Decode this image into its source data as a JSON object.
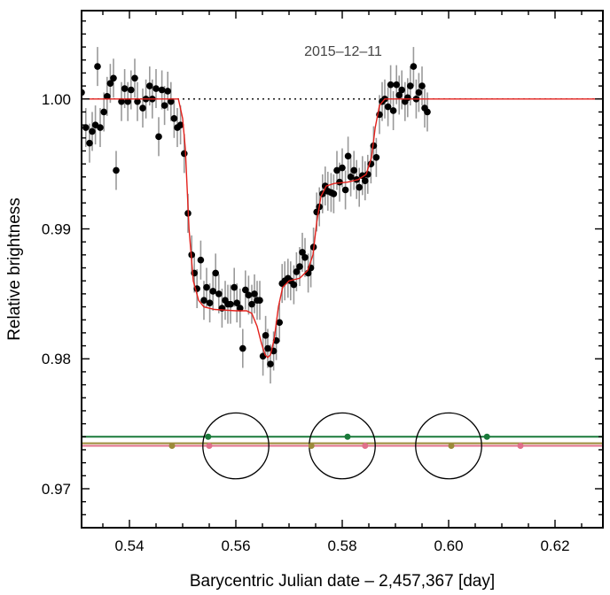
{
  "chart_data": {
    "type": "scatter",
    "date_label": "2015–12–11",
    "xlabel": "Barycentric Julian date – 2,457,367 [day]",
    "ylabel": "Relative brightness",
    "xlim": [
      0.531,
      0.629
    ],
    "ylim": [
      0.967,
      1.0068
    ],
    "x_ticks": [
      0.54,
      0.56,
      0.58,
      0.6,
      0.62
    ],
    "x_tick_labels": [
      "0.54",
      "0.56",
      "0.58",
      "0.60",
      "0.62"
    ],
    "y_ticks": [
      0.97,
      0.98,
      0.99,
      1.0
    ],
    "y_tick_labels": [
      "0.97",
      "0.98",
      "0.99",
      "1.00"
    ],
    "baseline": 1.0,
    "colors": {
      "data": "#000000",
      "errorbar": "#9a9a9a",
      "model": "#e4211c",
      "green_line": "#1a7a3a",
      "olive_line": "#9c8a3a",
      "pink_line": "#e0708a",
      "circle": "#000000"
    },
    "data_points": [
      [
        0.531,
        1.0005,
        0.0015
      ],
      [
        0.5318,
        0.9978,
        0.0015
      ],
      [
        0.5325,
        0.9966,
        0.0015
      ],
      [
        0.533,
        0.9975,
        0.0015
      ],
      [
        0.5336,
        0.998,
        0.0015
      ],
      [
        0.534,
        1.0025,
        0.0015
      ],
      [
        0.5345,
        0.9978,
        0.0015
      ],
      [
        0.5352,
        0.999,
        0.0015
      ],
      [
        0.5358,
        1.0002,
        0.0015
      ],
      [
        0.5364,
        1.0012,
        0.0015
      ],
      [
        0.537,
        1.0016,
        0.0015
      ],
      [
        0.5375,
        0.9945,
        0.0015
      ],
      [
        0.5385,
        0.9998,
        0.0015
      ],
      [
        0.5391,
        1.0008,
        0.0015
      ],
      [
        0.5397,
        0.9998,
        0.0015
      ],
      [
        0.5403,
        1.0007,
        0.0015
      ],
      [
        0.541,
        1.0016,
        0.0015
      ],
      [
        0.5415,
        0.9998,
        0.0015
      ],
      [
        0.5425,
        0.9993,
        0.0015
      ],
      [
        0.5431,
        1.0,
        0.0015
      ],
      [
        0.5438,
        1.001,
        0.0015
      ],
      [
        0.5443,
        1.0,
        0.0015
      ],
      [
        0.545,
        1.0008,
        0.0015
      ],
      [
        0.5455,
        0.9971,
        0.0015
      ],
      [
        0.5461,
        1.0007,
        0.0015
      ],
      [
        0.5466,
        0.9995,
        0.0015
      ],
      [
        0.5472,
        1.0006,
        0.0015
      ],
      [
        0.5478,
        0.9998,
        0.0015
      ],
      [
        0.5484,
        0.9985,
        0.0015
      ],
      [
        0.549,
        0.9978,
        0.0015
      ],
      [
        0.5496,
        0.998,
        0.0015
      ],
      [
        0.5503,
        0.9958,
        0.0015
      ],
      [
        0.551,
        0.9912,
        0.0015
      ],
      [
        0.5517,
        0.988,
        0.0015
      ],
      [
        0.5522,
        0.9866,
        0.0015
      ],
      [
        0.5527,
        0.9854,
        0.0015
      ],
      [
        0.5534,
        0.9876,
        0.0015
      ],
      [
        0.554,
        0.9845,
        0.0015
      ],
      [
        0.5545,
        0.9855,
        0.0015
      ],
      [
        0.5551,
        0.9843,
        0.0015
      ],
      [
        0.5557,
        0.9852,
        0.0015
      ],
      [
        0.5562,
        0.9866,
        0.0015
      ],
      [
        0.5568,
        0.985,
        0.0015
      ],
      [
        0.5574,
        0.9839,
        0.0015
      ],
      [
        0.558,
        0.9845,
        0.0015
      ],
      [
        0.5585,
        0.9842,
        0.0015
      ],
      [
        0.559,
        0.9842,
        0.0015
      ],
      [
        0.5597,
        0.9855,
        0.0015
      ],
      [
        0.5602,
        0.9843,
        0.0015
      ],
      [
        0.5608,
        0.9839,
        0.0015
      ],
      [
        0.5613,
        0.9808,
        0.0015
      ],
      [
        0.5618,
        0.9853,
        0.0015
      ],
      [
        0.5624,
        0.9849,
        0.0015
      ],
      [
        0.563,
        0.9842,
        0.0015
      ],
      [
        0.5635,
        0.985,
        0.0015
      ],
      [
        0.564,
        0.9845,
        0.0015
      ],
      [
        0.5645,
        0.9845,
        0.0015
      ],
      [
        0.5651,
        0.9802,
        0.0015
      ],
      [
        0.5656,
        0.9818,
        0.0015
      ],
      [
        0.566,
        0.9808,
        0.0015
      ],
      [
        0.5665,
        0.9796,
        0.0015
      ],
      [
        0.5671,
        0.9806,
        0.0015
      ],
      [
        0.5676,
        0.9814,
        0.0015
      ],
      [
        0.5682,
        0.9828,
        0.0015
      ],
      [
        0.5687,
        0.9858,
        0.0015
      ],
      [
        0.5692,
        0.986,
        0.0015
      ],
      [
        0.5698,
        0.9862,
        0.0015
      ],
      [
        0.5703,
        0.986,
        0.0015
      ],
      [
        0.5709,
        0.9857,
        0.0015
      ],
      [
        0.5714,
        0.9867,
        0.0015
      ],
      [
        0.572,
        0.9871,
        0.0015
      ],
      [
        0.5725,
        0.9882,
        0.0015
      ],
      [
        0.573,
        0.9878,
        0.0015
      ],
      [
        0.5736,
        0.9866,
        0.0015
      ],
      [
        0.5741,
        0.987,
        0.0015
      ],
      [
        0.5746,
        0.9886,
        0.0015
      ],
      [
        0.5752,
        0.9913,
        0.0015
      ],
      [
        0.5757,
        0.9917,
        0.0015
      ],
      [
        0.5763,
        0.9927,
        0.0015
      ],
      [
        0.5768,
        0.9933,
        0.0015
      ],
      [
        0.5773,
        0.9929,
        0.0015
      ],
      [
        0.5779,
        0.9928,
        0.0015
      ],
      [
        0.5784,
        0.9927,
        0.0015
      ],
      [
        0.579,
        0.9945,
        0.0015
      ],
      [
        0.5795,
        0.9936,
        0.0015
      ],
      [
        0.58,
        0.9947,
        0.0015
      ],
      [
        0.5806,
        0.993,
        0.0015
      ],
      [
        0.5811,
        0.9956,
        0.0015
      ],
      [
        0.5816,
        0.994,
        0.0015
      ],
      [
        0.5822,
        0.9945,
        0.0015
      ],
      [
        0.5827,
        0.9938,
        0.0015
      ],
      [
        0.5832,
        0.9932,
        0.0015
      ],
      [
        0.5838,
        0.9941,
        0.0015
      ],
      [
        0.5843,
        0.9937,
        0.0015
      ],
      [
        0.5848,
        0.9942,
        0.0015
      ],
      [
        0.5854,
        0.995,
        0.0015
      ],
      [
        0.5859,
        0.9964,
        0.0015
      ],
      [
        0.5864,
        0.9955,
        0.0015
      ],
      [
        0.587,
        0.9988,
        0.0015
      ],
      [
        0.5875,
        0.9998,
        0.0015
      ],
      [
        0.588,
        1.0,
        0.0015
      ],
      [
        0.5886,
        0.9994,
        0.0015
      ],
      [
        0.5891,
        1.0011,
        0.0015
      ],
      [
        0.5896,
        0.9991,
        0.0015
      ],
      [
        0.5902,
        1.0011,
        0.0015
      ],
      [
        0.5907,
        1.0003,
        0.0015
      ],
      [
        0.5912,
        1.0007,
        0.0015
      ],
      [
        0.5918,
        0.9998,
        0.0015
      ],
      [
        0.5923,
        1.0001,
        0.0015
      ],
      [
        0.5928,
        1.001,
        0.0015
      ],
      [
        0.5934,
        1.0025,
        0.0015
      ],
      [
        0.5939,
        1.0,
        0.0015
      ],
      [
        0.5944,
        1.0005,
        0.0015
      ],
      [
        0.595,
        1.001,
        0.0015
      ],
      [
        0.5955,
        0.9993,
        0.0015
      ],
      [
        0.596,
        0.999,
        0.0015
      ]
    ],
    "x_scale_factor_note": "",
    "model_curve": [
      [
        0.531,
        1.0
      ],
      [
        0.5492,
        1.0
      ],
      [
        0.55,
        0.9985
      ],
      [
        0.5505,
        0.9962
      ],
      [
        0.5512,
        0.99
      ],
      [
        0.552,
        0.986
      ],
      [
        0.553,
        0.9845
      ],
      [
        0.554,
        0.984
      ],
      [
        0.556,
        0.9838
      ],
      [
        0.56,
        0.9837
      ],
      [
        0.562,
        0.9837
      ],
      [
        0.563,
        0.9835
      ],
      [
        0.564,
        0.9825
      ],
      [
        0.5648,
        0.9812
      ],
      [
        0.5655,
        0.9803
      ],
      [
        0.566,
        0.9801
      ],
      [
        0.5665,
        0.9803
      ],
      [
        0.5672,
        0.9815
      ],
      [
        0.568,
        0.984
      ],
      [
        0.5688,
        0.9855
      ],
      [
        0.57,
        0.986
      ],
      [
        0.572,
        0.9862
      ],
      [
        0.5735,
        0.9868
      ],
      [
        0.5745,
        0.988
      ],
      [
        0.5752,
        0.9905
      ],
      [
        0.576,
        0.9925
      ],
      [
        0.577,
        0.9933
      ],
      [
        0.5785,
        0.9935
      ],
      [
        0.581,
        0.9936
      ],
      [
        0.583,
        0.9938
      ],
      [
        0.5845,
        0.9942
      ],
      [
        0.5855,
        0.9955
      ],
      [
        0.5862,
        0.9978
      ],
      [
        0.587,
        0.9995
      ],
      [
        0.588,
        1.0
      ],
      [
        0.629,
        1.0
      ]
    ],
    "overlay_lines": [
      {
        "color": "green_line",
        "y": 0.974
      },
      {
        "color": "olive_line",
        "y": 0.9735
      },
      {
        "color": "pink_line",
        "y": 0.9733
      }
    ],
    "circles": [
      {
        "cx": 0.56,
        "cy": 0.9733,
        "r_data_x": 0.0062
      },
      {
        "cx": 0.58,
        "cy": 0.9733,
        "r_data_x": 0.0062
      },
      {
        "cx": 0.6,
        "cy": 0.9733,
        "r_data_x": 0.0062
      }
    ],
    "overlay_points": [
      {
        "x": 0.5548,
        "y": 0.974,
        "color": "green_line"
      },
      {
        "x": 0.581,
        "y": 0.974,
        "color": "green_line"
      },
      {
        "x": 0.6072,
        "y": 0.974,
        "color": "green_line"
      },
      {
        "x": 0.548,
        "y": 0.9733,
        "color": "olive_line"
      },
      {
        "x": 0.5742,
        "y": 0.9733,
        "color": "olive_line"
      },
      {
        "x": 0.6005,
        "y": 0.9733,
        "color": "olive_line"
      },
      {
        "x": 0.555,
        "y": 0.9733,
        "color": "pink_line"
      },
      {
        "x": 0.5843,
        "y": 0.9733,
        "color": "pink_line"
      },
      {
        "x": 0.6135,
        "y": 0.9733,
        "color": "pink_line"
      }
    ]
  }
}
